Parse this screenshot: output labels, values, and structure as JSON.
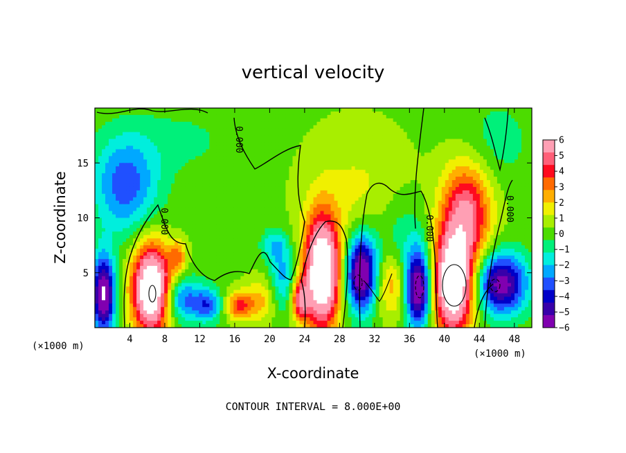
{
  "chart_data": {
    "type": "heatmap",
    "title": "vertical velocity",
    "xlabel": "X-coordinate",
    "ylabel": "Z-coordinate",
    "x_unit_label": "(×1000 m)",
    "x_unit_label_right": "(×1000 m)",
    "x_ticks": [
      4,
      8,
      12,
      16,
      20,
      24,
      28,
      32,
      36,
      40,
      44,
      48
    ],
    "y_ticks": [
      5,
      10,
      15
    ],
    "xlim": [
      0,
      50
    ],
    "ylim": [
      0,
      20
    ],
    "note": "CONTOUR INTERVAL = 8.000E+00",
    "contour_label": "0.000",
    "colorbar": {
      "labels": [
        "6",
        "5",
        "4",
        "3",
        "2",
        "1",
        "0",
        "−1",
        "−2",
        "−3",
        "−4",
        "−5",
        "−6"
      ],
      "colors": [
        "#ff9fb4",
        "#ff5f78",
        "#ff0a1e",
        "#ff6a00",
        "#ffae00",
        "#f0f000",
        "#a8ee00",
        "#4cdc00",
        "#00f07a",
        "#00eedd",
        "#00a8ff",
        "#2050ff",
        "#0000c8",
        "#3800aa",
        "#8000b0"
      ],
      "vmin": -6,
      "vmax": 6
    },
    "field_features": [
      {
        "x": 3.5,
        "z": 13,
        "w": -3.5,
        "rx": 3.8,
        "rz": 4.5
      },
      {
        "x": 1.0,
        "z": 3,
        "w": -7,
        "rx": 1.3,
        "rz": 3.5
      },
      {
        "x": 6.5,
        "z": 3.5,
        "w": 9,
        "rx": 2.2,
        "rz": 4.0
      },
      {
        "x": 10,
        "z": 2.5,
        "w": -3.5,
        "rx": 2.5,
        "rz": 2.0
      },
      {
        "x": 13,
        "z": 2,
        "w": -3,
        "rx": 1.5,
        "rz": 1.5
      },
      {
        "x": 9.5,
        "z": 6.5,
        "w": 2.5,
        "rx": 1.0,
        "rz": 1.5
      },
      {
        "x": 16.5,
        "z": 2,
        "w": 3.5,
        "rx": 1.5,
        "rz": 1.3
      },
      {
        "x": 19,
        "z": 2.5,
        "w": 2,
        "rx": 1.8,
        "rz": 2.0
      },
      {
        "x": 21.5,
        "z": 4.5,
        "w": -2.5,
        "rx": 1.5,
        "rz": 3.0
      },
      {
        "x": 20.5,
        "z": 7.5,
        "w": -2,
        "rx": 1.5,
        "rz": 1.5
      },
      {
        "x": 23.5,
        "z": 2.5,
        "w": 4.5,
        "rx": 1.0,
        "rz": 1.8
      },
      {
        "x": 26,
        "z": 5,
        "w": 9,
        "rx": 2.0,
        "rz": 5.0
      },
      {
        "x": 30.5,
        "z": 5,
        "w": -7,
        "rx": 1.8,
        "rz": 3.5
      },
      {
        "x": 34,
        "z": 4,
        "w": 2.5,
        "rx": 2.0,
        "rz": 3.0
      },
      {
        "x": 35,
        "z": 8,
        "w": -1.5,
        "rx": 3.0,
        "rz": 4.0
      },
      {
        "x": 37,
        "z": 3.5,
        "w": -7,
        "rx": 1.5,
        "rz": 3.5
      },
      {
        "x": 41,
        "z": 4,
        "w": 9,
        "rx": 2.3,
        "rz": 4.5
      },
      {
        "x": 42.5,
        "z": 10.5,
        "w": 5,
        "rx": 2.8,
        "rz": 4.5
      },
      {
        "x": 46.5,
        "z": 4,
        "w": -6,
        "rx": 3.0,
        "rz": 2.8
      },
      {
        "x": 30,
        "z": 12,
        "w": 1.2,
        "rx": 6.0,
        "rz": 6.0
      },
      {
        "x": 46,
        "z": 17,
        "w": -1.0,
        "rx": 4.0,
        "rz": 4.0
      },
      {
        "x": 10,
        "z": 17,
        "w": -0.8,
        "rx": 6.0,
        "rz": 3.0
      }
    ]
  }
}
